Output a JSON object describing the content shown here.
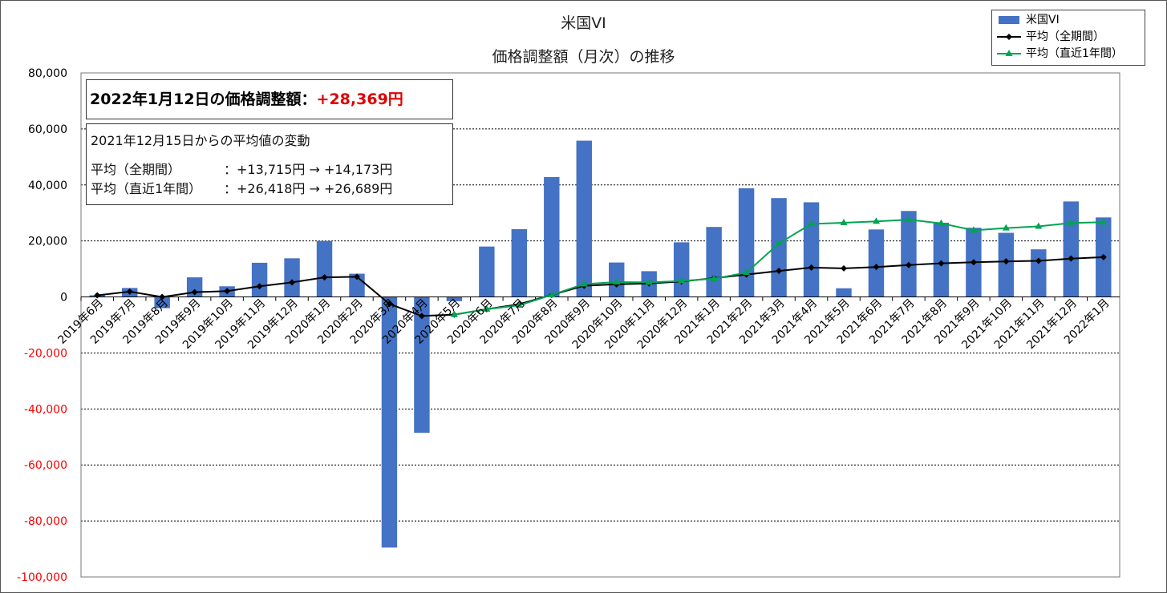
{
  "title": {
    "line1": "米国VI",
    "line2": "価格調整額（月次）の推移"
  },
  "legend": {
    "items": [
      {
        "label": "米国VI",
        "type": "bar",
        "color": "#4472C4"
      },
      {
        "label": "平均（全期間）",
        "type": "line",
        "color": "#000000",
        "marker": "diamond"
      },
      {
        "label": "平均（直近1年間）",
        "type": "line",
        "color": "#00A550",
        "marker": "triangle"
      }
    ]
  },
  "info_box": {
    "headline_label": "2022年1月12日の価格調整額：",
    "headline_value": "+28,369円",
    "subtitle": "2021年12月15日からの平均値の変動",
    "row1_label": "平均（全期間）",
    "row1_value": "：+13,715円 → +14,173円",
    "row2_label": "平均（直近1年間）",
    "row2_value": "：+26,418円 → +26,689円"
  },
  "chart_data": {
    "type": "bar",
    "title": "米国VI 価格調整額（月次）の推移",
    "xlabel": "",
    "ylabel": "",
    "ylim": [
      -100000,
      80000
    ],
    "yticks": [
      80000,
      60000,
      40000,
      20000,
      0,
      -20000,
      -40000,
      -60000,
      -80000,
      -100000
    ],
    "ytick_labels": [
      "80,000",
      "60,000",
      "40,000",
      "20,000",
      "0",
      "-20,000",
      "-40,000",
      "-60,000",
      "-80,000",
      "-100,000"
    ],
    "grid": true,
    "legend_position": "top-right",
    "negative_tick_color": "#FF0000",
    "categories": [
      "2019年6月",
      "2019年7月",
      "2019年8月",
      "2019年9月",
      "2019年10月",
      "2019年11月",
      "2019年12月",
      "2020年1月",
      "2020年2月",
      "2020年3月",
      "2020年4月",
      "2020年5月",
      "2020年6月",
      "2020年7月",
      "2020年8月",
      "2020年9月",
      "2020年10月",
      "2020年11月",
      "2020年12月",
      "2021年1月",
      "2021年2月",
      "2021年3月",
      "2021年4月",
      "2021年5月",
      "2021年6月",
      "2021年7月",
      "2021年8月",
      "2021年9月",
      "2021年10月",
      "2021年11月",
      "2021年12月",
      "2022年1月"
    ],
    "series": [
      {
        "name": "米国VI",
        "type": "bar",
        "color": "#4472C4",
        "values": [
          600,
          3200,
          -4000,
          7000,
          3800,
          12200,
          13800,
          20000,
          8300,
          -89500,
          -48500,
          -1500,
          18000,
          24200,
          42800,
          55800,
          12300,
          9200,
          19500,
          25000,
          38800,
          35300,
          33800,
          3100,
          24100,
          30700,
          26500,
          24700,
          22900,
          17000,
          34100,
          28400
        ]
      },
      {
        "name": "平均（全期間）",
        "type": "line",
        "color": "#000000",
        "values": [
          600,
          1900,
          0,
          1700,
          2100,
          3800,
          5200,
          7000,
          7200,
          -2500,
          -6800,
          -6300,
          -4400,
          -2600,
          700,
          4000,
          4500,
          4800,
          5500,
          6700,
          8000,
          9300,
          10500,
          10200,
          10700,
          11400,
          12000,
          12400,
          12700,
          12900,
          13700,
          14200
        ]
      },
      {
        "name": "平均（直近1年間）",
        "type": "line",
        "color": "#00A550",
        "values": [
          null,
          null,
          null,
          null,
          null,
          null,
          null,
          null,
          null,
          null,
          null,
          -6300,
          -4400,
          -3000,
          700,
          4600,
          5300,
          5200,
          5700,
          6500,
          8700,
          19100,
          26100,
          26500,
          27000,
          27600,
          26300,
          23800,
          24600,
          25200,
          26400,
          26700
        ]
      }
    ]
  }
}
